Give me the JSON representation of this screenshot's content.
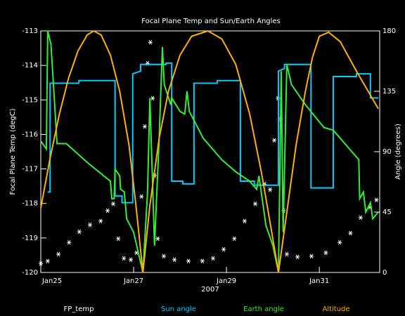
{
  "chart_data": {
    "type": "line",
    "title": "Focal Plane Temp and Sun/Earth Angles",
    "xlabel": "2007",
    "ylabel": "Focal Plane Temp (degC)",
    "y2label": "Angle (degrees)",
    "xlim": [
      0,
      7.3
    ],
    "xticks": [
      {
        "value": 0,
        "label": "Jan25"
      },
      {
        "value": 2,
        "label": "Jan27"
      },
      {
        "value": 4,
        "label": "Jan29"
      },
      {
        "value": 6,
        "label": "Jan31"
      }
    ],
    "ylim": [
      -120,
      -113
    ],
    "yticks": [
      -120,
      -119,
      -118,
      -117,
      -116,
      -115,
      -114,
      -113
    ],
    "y2lim": [
      0,
      180
    ],
    "y2ticks": [
      0,
      45,
      90,
      135,
      180
    ],
    "series": [
      {
        "name": "FP_temp",
        "color": "#ffffff",
        "marker": "star",
        "x": [
          0,
          0.15,
          0.38,
          0.61,
          0.83,
          1.06,
          1.29,
          1.44,
          1.56,
          1.67,
          1.79,
          1.94,
          2.06,
          2.17,
          2.24,
          2.3,
          2.36,
          2.41,
          2.45,
          2.52,
          2.65,
          2.88,
          3.18,
          3.48,
          3.71,
          3.94,
          4.17,
          4.39,
          4.62,
          4.82,
          4.94,
          5.03,
          5.11,
          5.17,
          5.23,
          5.3,
          5.53,
          5.83,
          6.14,
          6.44,
          6.67,
          6.89,
          7.09,
          7.23
        ],
        "values": [
          -119.74,
          -119.67,
          -119.47,
          -119.13,
          -118.82,
          -118.62,
          -118.51,
          -118.21,
          -118.01,
          -119.02,
          -119.59,
          -119.63,
          -119.43,
          -117.8,
          -115.77,
          -113.94,
          -113.33,
          -114.95,
          -117.19,
          -119.02,
          -119.53,
          -119.63,
          -119.67,
          -119.67,
          -119.59,
          -119.33,
          -119.02,
          -118.51,
          -118.01,
          -117.44,
          -117.6,
          -116.17,
          -114.95,
          -115.56,
          -118.21,
          -119.47,
          -119.55,
          -119.53,
          -119.43,
          -119.13,
          -118.86,
          -118.41,
          -118.11,
          -117.9
        ]
      },
      {
        "name": "Sun angle",
        "color": "#00ccff",
        "axis": "y2",
        "x": [
          0.15,
          0.2,
          0.2,
          0.82,
          0.82,
          1.6,
          1.6,
          1.75,
          1.75,
          1.98,
          1.98,
          2.15,
          2.15,
          2.7,
          2.7,
          2.82,
          2.82,
          3.06,
          3.06,
          3.3,
          3.3,
          3.8,
          3.8,
          4.3,
          4.3,
          4.6,
          4.6,
          5.12,
          5.12,
          5.25,
          5.25,
          5.82,
          5.82,
          6.3,
          6.3,
          6.8,
          6.8,
          7.1,
          7.1,
          7.27
        ],
        "values": [
          60,
          60,
          141,
          141,
          143,
          143,
          57,
          57,
          52,
          52,
          148,
          150,
          155,
          155,
          156,
          156,
          68,
          68,
          66,
          66,
          141,
          141,
          143,
          143,
          68,
          68,
          65,
          65,
          150,
          152,
          155,
          155,
          63,
          63,
          146,
          146,
          148,
          148,
          130,
          130
        ]
      },
      {
        "name": "Earth angle",
        "color": "#33ee33",
        "axis": "y2",
        "x": [
          0,
          0.12,
          0.15,
          0.22,
          0.35,
          0.55,
          1.0,
          1.5,
          1.53,
          1.58,
          1.6,
          1.7,
          1.72,
          1.8,
          1.85,
          2.0,
          2.2,
          2.3,
          2.35,
          2.45,
          2.55,
          2.62,
          2.66,
          2.8,
          2.82,
          3.0,
          3.1,
          3.15,
          3.2,
          3.5,
          3.9,
          4.2,
          4.5,
          4.65,
          4.7,
          4.85,
          5.0,
          5.12,
          5.18,
          5.22,
          5.3,
          5.4,
          5.7,
          6.1,
          6.3,
          6.5,
          6.85,
          6.87,
          6.95,
          7.0,
          7.1,
          7.15,
          7.27
        ],
        "values": [
          98,
          92,
          180,
          170,
          96,
          96,
          82,
          68,
          55,
          55,
          77,
          72,
          62,
          60,
          40,
          30,
          0,
          60,
          130,
          20,
          100,
          168,
          140,
          125,
          130,
          120,
          118,
          135,
          120,
          100,
          84,
          75,
          68,
          62,
          72,
          35,
          20,
          0,
          150,
          30,
          155,
          140,
          125,
          108,
          106,
          98,
          84,
          55,
          60,
          45,
          52,
          40,
          45
        ]
      },
      {
        "name": "Altitude",
        "color": "#ffb000",
        "axis": "y2",
        "x": [
          0,
          0.2,
          0.4,
          0.6,
          0.8,
          1.0,
          1.14,
          1.3,
          1.5,
          1.7,
          1.9,
          2.05,
          2.2,
          2.35,
          2.55,
          2.75,
          3.0,
          3.25,
          3.6,
          3.9,
          4.2,
          4.5,
          4.75,
          4.95,
          5.12,
          5.3,
          5.5,
          5.7,
          5.85,
          6.0,
          6.2,
          6.45,
          6.8,
          7.27
        ],
        "values": [
          48,
          85,
          118,
          145,
          165,
          177,
          180,
          177,
          162,
          135,
          95,
          50,
          0,
          50,
          100,
          135,
          162,
          176,
          180,
          174,
          155,
          118,
          75,
          35,
          0,
          45,
          95,
          135,
          160,
          176,
          179,
          172,
          150,
          122
        ]
      }
    ]
  }
}
